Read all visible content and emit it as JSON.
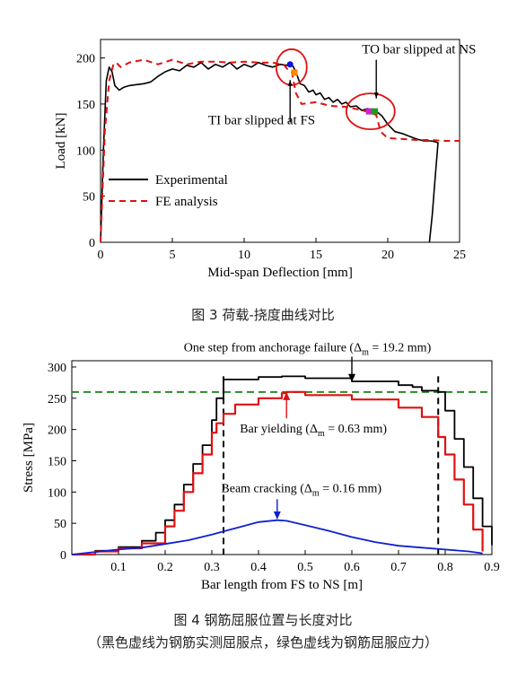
{
  "chart_data": [
    {
      "type": "line",
      "xlabel": "Mid-span Deflection [mm]",
      "ylabel": "Load [kN]",
      "xlim": [
        0,
        25
      ],
      "ylim": [
        0,
        220
      ],
      "xticks": [
        0,
        5,
        10,
        15,
        20,
        25
      ],
      "yticks": [
        0,
        50,
        100,
        150,
        200
      ],
      "legend_position": "bottom-left",
      "series": [
        {
          "name": "Experimental",
          "color": "#000000",
          "style": "solid",
          "x": [
            0,
            0.2,
            0.4,
            0.6,
            0.8,
            1.0,
            1.3,
            1.6,
            2.0,
            2.5,
            3.0,
            3.5,
            4.0,
            4.5,
            5.0,
            5.5,
            6.0,
            6.5,
            7.0,
            7.5,
            8.0,
            8.5,
            9.0,
            9.5,
            10.0,
            10.5,
            11.0,
            11.5,
            12.0,
            12.5,
            13.0,
            13.4,
            13.6,
            13.9,
            14.2,
            14.5,
            14.8,
            15.0,
            15.3,
            15.6,
            15.9,
            16.2,
            16.5,
            16.8,
            17.1,
            17.4,
            17.8,
            18.2,
            18.6,
            19.0,
            19.3,
            19.6,
            20.0,
            20.5,
            21.0,
            21.5,
            22.0,
            22.5,
            23.0,
            23.3,
            23.5,
            23.3,
            23.1,
            22.9
          ],
          "y": [
            0,
            100,
            175,
            190,
            185,
            170,
            165,
            168,
            170,
            171,
            172,
            174,
            180,
            185,
            188,
            186,
            192,
            190,
            195,
            188,
            193,
            190,
            195,
            188,
            193,
            190,
            195,
            192,
            190,
            193,
            192,
            191,
            185,
            172,
            170,
            163,
            165,
            160,
            162,
            155,
            157,
            152,
            155,
            150,
            152,
            147,
            148,
            143,
            145,
            142,
            141,
            137,
            128,
            120,
            118,
            115,
            112,
            110,
            110,
            109,
            108,
            70,
            30,
            0
          ]
        },
        {
          "name": "FE analysis",
          "color": "#e01010",
          "style": "dashed",
          "x": [
            0,
            0.3,
            0.6,
            0.9,
            1.1,
            1.4,
            2.0,
            3.0,
            4.0,
            5.0,
            6.0,
            7.0,
            8.0,
            9.0,
            10.0,
            11.0,
            12.0,
            12.8,
            13.0,
            13.3,
            13.6,
            14.0,
            15.0,
            16.0,
            17.0,
            18.0,
            18.5,
            18.9,
            19.2,
            19.5,
            20.0,
            21.0,
            22.0,
            23.0,
            24.0,
            25.0
          ],
          "y": [
            0,
            120,
            175,
            193,
            195,
            190,
            195,
            198,
            193,
            198,
            193,
            196,
            196,
            195,
            196,
            195,
            195,
            192,
            188,
            186,
            162,
            150,
            152,
            148,
            147,
            144,
            142,
            140,
            138,
            120,
            113,
            112,
            111,
            111,
            110,
            110
          ]
        }
      ],
      "points": [
        {
          "x": 13.2,
          "y": 193,
          "color": "#1010e0"
        },
        {
          "x": 13.5,
          "y": 184,
          "color": "#ff8800"
        },
        {
          "x": 18.7,
          "y": 142,
          "color": "#cc22cc"
        },
        {
          "x": 19.1,
          "y": 142,
          "color": "#229922"
        }
      ],
      "annotations": [
        {
          "text": "TO bar slipped at NS",
          "x": 18.2,
          "y": 205
        },
        {
          "text": "TI bar slipped at FS",
          "x": 7.5,
          "y": 128
        }
      ]
    },
    {
      "type": "line",
      "xlabel": "Bar length from FS to NS [m]",
      "ylabel": "Stress [MPa]",
      "xlim": [
        0,
        0.9
      ],
      "ylim": [
        0,
        310
      ],
      "xticks": [
        0.1,
        0.2,
        0.3,
        0.4,
        0.5,
        0.6,
        0.7,
        0.8,
        0.9
      ],
      "yticks": [
        0,
        50,
        100,
        150,
        200,
        250,
        300
      ],
      "reference_y": 260,
      "reference_x": [
        0.325,
        0.785
      ],
      "series": [
        {
          "color": "#000000",
          "style": "solid",
          "x": [
            0.0,
            0.05,
            0.1,
            0.15,
            0.18,
            0.2,
            0.22,
            0.24,
            0.26,
            0.28,
            0.3,
            0.31,
            0.325,
            0.4,
            0.45,
            0.5,
            0.6,
            0.7,
            0.73,
            0.75,
            0.785,
            0.8,
            0.82,
            0.84,
            0.86,
            0.88,
            0.9
          ],
          "y": [
            0,
            6,
            12,
            22,
            35,
            55,
            80,
            112,
            145,
            175,
            215,
            250,
            280,
            284,
            285,
            282,
            277,
            271,
            268,
            262,
            260,
            230,
            185,
            140,
            90,
            45,
            15
          ]
        },
        {
          "color": "#e01010",
          "style": "solid",
          "x": [
            0.0,
            0.05,
            0.1,
            0.15,
            0.2,
            0.22,
            0.24,
            0.26,
            0.28,
            0.3,
            0.31,
            0.325,
            0.35,
            0.4,
            0.45,
            0.46,
            0.5,
            0.6,
            0.7,
            0.75,
            0.785,
            0.8,
            0.82,
            0.84,
            0.86,
            0.88
          ],
          "y": [
            0,
            5,
            10,
            18,
            45,
            70,
            100,
            130,
            160,
            195,
            210,
            225,
            240,
            250,
            258,
            260,
            255,
            248,
            235,
            220,
            188,
            160,
            120,
            80,
            40,
            5
          ]
        },
        {
          "color": "#1020d0",
          "style": "solid",
          "x": [
            0.0,
            0.05,
            0.1,
            0.15,
            0.2,
            0.25,
            0.3,
            0.35,
            0.4,
            0.44,
            0.46,
            0.5,
            0.55,
            0.6,
            0.65,
            0.7,
            0.75,
            0.8,
            0.85,
            0.88
          ],
          "y": [
            0,
            4,
            8,
            11,
            17,
            23,
            32,
            42,
            52,
            55,
            54,
            47,
            38,
            28,
            20,
            14,
            11,
            8,
            5,
            2
          ]
        }
      ],
      "annotations": [
        {
          "text": "One step from anchorage failure (Δ",
          "sub": "m",
          "tail": " = 19.2 mm)",
          "x": 0.24,
          "y": 325,
          "arrow_x": 0.6,
          "arrow_y": 276
        },
        {
          "text": "Bar yielding (Δ",
          "sub": "m",
          "tail": " = 0.63 mm)",
          "x": 0.36,
          "y": 195,
          "arrow_x": 0.46,
          "arrow_y": 260
        },
        {
          "text": "Beam cracking (Δ",
          "sub": "m",
          "tail": " = 0.16 mm)",
          "x": 0.32,
          "y": 100,
          "arrow_x": 0.44,
          "arrow_y": 56
        }
      ]
    }
  ],
  "captions": {
    "fig3": "图 3  荷载-挠度曲线对比",
    "fig4": "图 4  钢筋屈服位置与长度对比",
    "fig4_note": "（黑色虚线为钢筋实测屈服点，绿色虚线为钢筋屈服应力）"
  }
}
